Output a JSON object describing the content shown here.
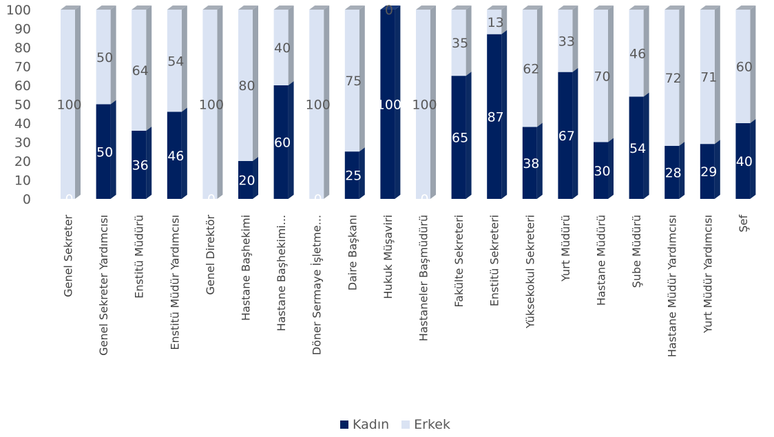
{
  "chart_data": {
    "type": "bar",
    "stacked": true,
    "three_d": true,
    "categories": [
      "Genel Sekreter",
      "Genel Sekreter Yardımcısı",
      "Enstitü Müdürü",
      "Enstitü Müdür Yardımcısı",
      "Genel Direktör",
      "Hastane Başhekimi",
      "Hastane Başhekimi...",
      "Döner Sermaye İşletme...",
      "Daire Başkanı",
      "Hukuk Müşaviri",
      "Hastaneler Başmüdürü",
      "Fakülte Sekreteri",
      "Enstitü Sekreteri",
      "Yüksekokul Sekreteri",
      "Yurt Müdürü",
      "Hastane Müdürü",
      "Şube Müdürü",
      "Hastane Müdür Yardımcısı",
      "Yurt Müdür Yardımcısı",
      "Şef"
    ],
    "series": [
      {
        "name": "Kadın",
        "color": "#002060",
        "values": [
          0,
          50,
          36,
          46,
          0,
          20,
          60,
          0,
          25,
          100,
          0,
          65,
          87,
          38,
          67,
          30,
          54,
          28,
          29,
          40
        ]
      },
      {
        "name": "Erkek",
        "color": "#dae3f3",
        "values": [
          100,
          50,
          64,
          54,
          100,
          80,
          40,
          100,
          75,
          0,
          100,
          35,
          13,
          62,
          33,
          70,
          46,
          72,
          71,
          60
        ]
      }
    ],
    "ylim": [
      0,
      100
    ],
    "yticks": [
      0,
      10,
      20,
      30,
      40,
      50,
      60,
      70,
      80,
      90,
      100
    ],
    "title": "",
    "xlabel": "",
    "ylabel": "",
    "grid": false,
    "legend_position": "bottom"
  }
}
